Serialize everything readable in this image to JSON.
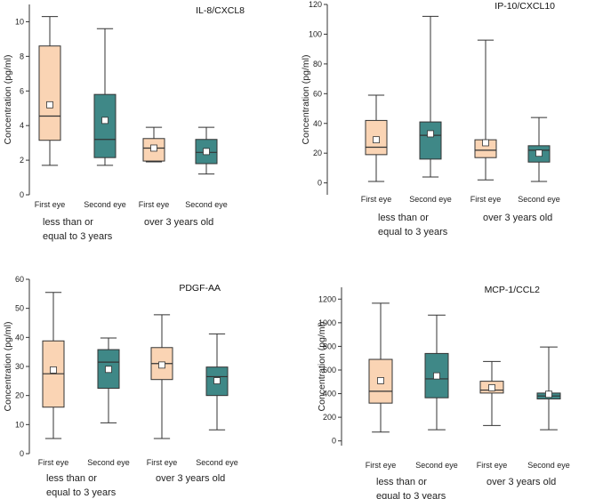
{
  "colors": {
    "first_eye": "#fad4b4",
    "second_eye": "#3f8887",
    "stroke": "#333333"
  },
  "chart_data": [
    {
      "type": "box",
      "title": "IL-8/CXCL8",
      "ylabel": "Concentration (pg/ml)",
      "ylim": [
        0,
        11
      ],
      "yticks": [
        0,
        2,
        4,
        6,
        8,
        10
      ],
      "categories": [
        "First eye",
        "Second eye",
        "First eye",
        "Second eye"
      ],
      "groups": [
        "less than or equal to 3 years",
        "over 3 years old"
      ],
      "series": [
        {
          "name": "First eye",
          "group": "less than or equal to 3 years",
          "min": 1.7,
          "q1": 3.15,
          "median": 4.55,
          "q3": 8.6,
          "max": 10.3,
          "mean": 5.2
        },
        {
          "name": "Second eye",
          "group": "less than or equal to 3 years",
          "min": 1.7,
          "q1": 2.15,
          "median": 3.2,
          "q3": 5.8,
          "max": 9.6,
          "mean": 4.3
        },
        {
          "name": "First eye",
          "group": "over 3 years old",
          "min": 1.9,
          "q1": 1.95,
          "median": 2.7,
          "q3": 3.25,
          "max": 3.9,
          "mean": 2.7
        },
        {
          "name": "Second eye",
          "group": "over 3 years old",
          "min": 1.2,
          "q1": 1.8,
          "median": 2.45,
          "q3": 3.2,
          "max": 3.9,
          "mean": 2.5
        }
      ]
    },
    {
      "type": "box",
      "title": "IP-10/CXCL10",
      "ylabel": "Concentration (pg/ml)",
      "ylim": [
        -8,
        120
      ],
      "yticks": [
        0,
        20,
        40,
        60,
        80,
        100,
        120
      ],
      "categories": [
        "First eye",
        "Second eye",
        "First eye",
        "Second eye"
      ],
      "groups": [
        "less than or equal to 3 years",
        "over 3 years old"
      ],
      "series": [
        {
          "name": "First eye",
          "group": "less than or equal to 3 years",
          "min": 1,
          "q1": 19,
          "median": 24,
          "q3": 42,
          "max": 59,
          "mean": 29
        },
        {
          "name": "Second eye",
          "group": "less than or equal to 3 years",
          "min": 4,
          "q1": 16,
          "median": 32,
          "q3": 41,
          "max": 112,
          "mean": 33
        },
        {
          "name": "First eye",
          "group": "over 3 years old",
          "min": 2,
          "q1": 17,
          "median": 22,
          "q3": 29,
          "max": 96,
          "mean": 27
        },
        {
          "name": "Second eye",
          "group": "over 3 years old",
          "min": 1,
          "q1": 14,
          "median": 22,
          "q3": 25,
          "max": 44,
          "mean": 20
        }
      ]
    },
    {
      "type": "box",
      "title": "PDGF-AA",
      "ylabel": "Concentration (pg/ml)",
      "ylim": [
        0,
        60
      ],
      "yticks": [
        0,
        10,
        20,
        30,
        40,
        50,
        60
      ],
      "categories": [
        "First eye",
        "Second eye",
        "First eye",
        "Second eye"
      ],
      "groups": [
        "less than or equal to 3 years",
        "over 3 years old"
      ],
      "series": [
        {
          "name": "First eye",
          "group": "less than or equal to 3 years",
          "min": 5.2,
          "q1": 16,
          "median": 27.5,
          "q3": 38.8,
          "max": 55.5,
          "mean": 28.8
        },
        {
          "name": "Second eye",
          "group": "less than or equal to 3 years",
          "min": 10.6,
          "q1": 22.5,
          "median": 31.5,
          "q3": 35.8,
          "max": 39.8,
          "mean": 29
        },
        {
          "name": "First eye",
          "group": "over 3 years old",
          "min": 5.2,
          "q1": 25.5,
          "median": 31,
          "q3": 36.5,
          "max": 47.8,
          "mean": 30.5
        },
        {
          "name": "Second eye",
          "group": "over 3 years old",
          "min": 8.2,
          "q1": 20,
          "median": 26.5,
          "q3": 29.8,
          "max": 41.2,
          "mean": 25.1
        }
      ]
    },
    {
      "type": "box",
      "title": "MCP-1/CCL2",
      "ylabel": "Concentration (pg/ml)",
      "ylim": [
        -40,
        1300
      ],
      "yticks": [
        0,
        200,
        400,
        600,
        800,
        1000,
        1200
      ],
      "categories": [
        "First eye",
        "Second eye",
        "First eye",
        "Second eye"
      ],
      "groups": [
        "less than or equal to 3 years",
        "over 3 years old"
      ],
      "series": [
        {
          "name": "First eye",
          "group": "less than or equal to 3 years",
          "min": 75,
          "q1": 320,
          "median": 420,
          "q3": 690,
          "max": 1165,
          "mean": 510
        },
        {
          "name": "Second eye",
          "group": "less than or equal to 3 years",
          "min": 95,
          "q1": 365,
          "median": 525,
          "q3": 740,
          "max": 1065,
          "mean": 550
        },
        {
          "name": "First eye",
          "group": "over 3 years old",
          "min": 130,
          "q1": 405,
          "median": 430,
          "q3": 505,
          "max": 672,
          "mean": 450
        },
        {
          "name": "Second eye",
          "group": "over 3 years old",
          "min": 95,
          "q1": 355,
          "median": 380,
          "q3": 405,
          "max": 795,
          "mean": 395
        }
      ]
    }
  ]
}
